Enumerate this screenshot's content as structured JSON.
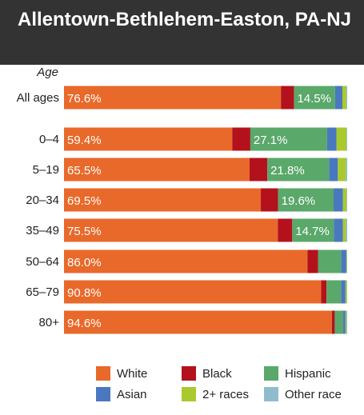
{
  "title": "Allentown-Bethlehem-Easton, PA-NJ",
  "chart_data": {
    "type": "bar",
    "orientation": "horizontal",
    "stacked": "100%",
    "axis_title": "Age",
    "categories": [
      "All ages",
      "0–4",
      "5–19",
      "20–34",
      "35–49",
      "50–64",
      "65–79",
      "80+"
    ],
    "series": [
      {
        "name": "White",
        "color": "#e8692a",
        "values": [
          76.6,
          59.4,
          65.5,
          69.5,
          75.5,
          86.0,
          90.8,
          94.6
        ]
      },
      {
        "name": "Black",
        "color": "#b3121d",
        "values": [
          4.6,
          6.4,
          6.3,
          6.1,
          5.1,
          3.7,
          1.9,
          1.0
        ]
      },
      {
        "name": "Hispanic",
        "color": "#5aa86a",
        "values": [
          14.5,
          27.1,
          21.8,
          19.6,
          14.7,
          8.2,
          5.1,
          3.0
        ]
      },
      {
        "name": "Asian",
        "color": "#4a78bf",
        "values": [
          2.6,
          3.3,
          3.1,
          3.3,
          3.2,
          1.8,
          1.6,
          0.8
        ]
      },
      {
        "name": "2+ races",
        "color": "#a9c92e",
        "values": [
          1.4,
          3.6,
          2.9,
          1.3,
          1.1,
          0.2,
          0.5,
          0.3
        ]
      },
      {
        "name": "Other race",
        "color": "#8fbccc",
        "values": [
          0.3,
          0.2,
          0.4,
          0.2,
          0.4,
          0.1,
          0.1,
          0.3
        ]
      }
    ],
    "data_labels": [
      {
        "white": "76.6%",
        "hispanic": "14.5%"
      },
      {
        "white": "59.4%",
        "hispanic": "27.1%"
      },
      {
        "white": "65.5%",
        "hispanic": "21.8%"
      },
      {
        "white": "69.5%",
        "hispanic": "19.6%"
      },
      {
        "white": "75.5%",
        "hispanic": "14.7%"
      },
      {
        "white": "86.0%",
        "hispanic": ""
      },
      {
        "white": "90.8%",
        "hispanic": ""
      },
      {
        "white": "94.6%",
        "hispanic": ""
      }
    ],
    "xlim": [
      0,
      100
    ],
    "grid": false,
    "legend_position": "bottom"
  }
}
